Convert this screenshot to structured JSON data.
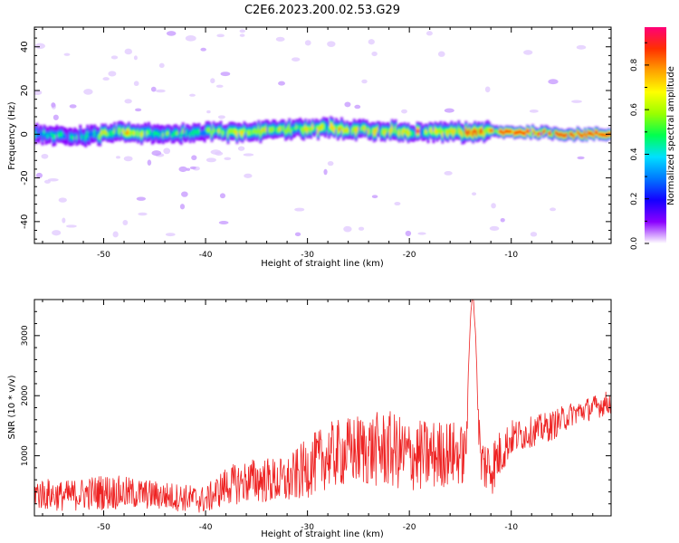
{
  "figure_title": "C2E6.2023.200.02.53.G29",
  "chart_data": [
    {
      "type": "heatmap",
      "title": "C2E6.2023.200.02.53.G29",
      "xlabel": "Height of straight line (km)",
      "ylabel": "Frequency (Hz)",
      "xlim": [
        -56.8,
        -0.2
      ],
      "ylim": [
        -50,
        49
      ],
      "x_ticks": [
        -50,
        -40,
        -30,
        -20,
        -10
      ],
      "y_ticks": [
        -40,
        -20,
        0,
        20,
        40
      ],
      "x_tick_labels": [
        "-50",
        "-40",
        "-30",
        "-20",
        "-10"
      ],
      "y_tick_labels": [
        "-40",
        "-20",
        "0",
        "20",
        "40"
      ],
      "grid": false,
      "colorbar": {
        "label": "Normalized spectral amplitude",
        "range": [
          0,
          0.97
        ],
        "ticks": [
          0.0,
          0.2,
          0.4,
          0.6,
          0.8
        ],
        "tick_labels": [
          "0.0",
          "0.2",
          "0.4",
          "0.6",
          "0.8"
        ],
        "colormap": [
          "#ffffff",
          "#8a00ff",
          "#1400ff",
          "#0078ff",
          "#00e0ff",
          "#00ff50",
          "#9aff00",
          "#ffff00",
          "#ffa000",
          "#ff3000",
          "#ff0078"
        ]
      },
      "ridge": {
        "description_points_km": [
          -56,
          -52,
          -48,
          -44,
          -40,
          -36,
          -32,
          -28,
          -24,
          -20,
          -16,
          -12,
          -8,
          -4,
          -0.5
        ],
        "center_freq_hz": [
          0,
          -1,
          1,
          0,
          1,
          1,
          2,
          3,
          2,
          1,
          1,
          1,
          1,
          0,
          0
        ],
        "peak_amplitude": [
          0.35,
          0.4,
          0.6,
          0.4,
          0.45,
          0.55,
          0.5,
          0.6,
          0.55,
          0.6,
          0.65,
          0.75,
          0.9,
          0.95,
          0.8
        ]
      }
    },
    {
      "type": "line",
      "xlabel": "Height of straight line (km)",
      "ylabel": "SNR (10 * v/v)",
      "xlim": [
        -56.8,
        -0.2
      ],
      "ylim": [
        0,
        3600
      ],
      "x_ticks": [
        -50,
        -40,
        -30,
        -20,
        -10
      ],
      "y_ticks": [
        1000,
        2000,
        3000
      ],
      "x_tick_labels": [
        "-50",
        "-40",
        "-30",
        "-20",
        "-10"
      ],
      "y_tick_labels": [
        "1000",
        "2000",
        "3000"
      ],
      "grid": false,
      "series": [
        {
          "color": "#ee2222",
          "envelope_x_km": [
            -56.8,
            -54,
            -50,
            -46,
            -42,
            -40,
            -38,
            -35,
            -32,
            -30,
            -28,
            -25,
            -22,
            -20,
            -18,
            -16,
            -14.5,
            -13.8,
            -13,
            -12,
            -10,
            -8,
            -6,
            -4,
            -2,
            -0.2
          ],
          "envelope_mean": [
            380,
            330,
            400,
            360,
            300,
            260,
            500,
            600,
            570,
            800,
            1000,
            1100,
            1100,
            1000,
            1000,
            1050,
            1000,
            3600,
            900,
            800,
            1300,
            1400,
            1500,
            1700,
            1800,
            1900
          ],
          "envelope_spread": [
            280,
            250,
            300,
            250,
            230,
            230,
            320,
            380,
            400,
            500,
            550,
            600,
            650,
            600,
            600,
            550,
            500,
            0,
            450,
            500,
            300,
            250,
            250,
            200,
            200,
            200
          ],
          "peak": {
            "x": -13.8,
            "y": 3600
          }
        }
      ]
    }
  ]
}
